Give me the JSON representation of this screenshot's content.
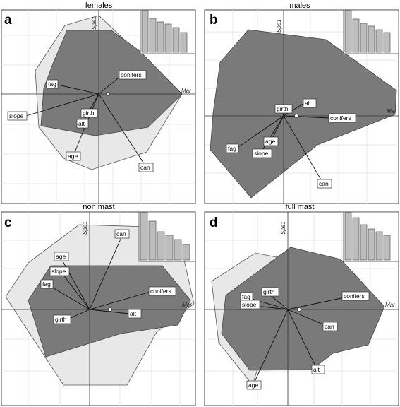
{
  "panels": [
    {
      "letter": "a",
      "title": "females",
      "axis_x": "Mar",
      "axis_y": "Spe1",
      "eigenvalues": [
        1.0,
        0.82,
        0.74,
        0.68,
        0.6,
        0.47
      ],
      "vectors": [
        {
          "label": "conifers"
        },
        {
          "label": "fag"
        },
        {
          "label": "slope"
        },
        {
          "label": "girth"
        },
        {
          "label": "alt"
        },
        {
          "label": "age"
        },
        {
          "label": "can"
        }
      ]
    },
    {
      "letter": "b",
      "title": "males",
      "axis_x": "Mar",
      "axis_y": "Spe1",
      "eigenvalues": [
        1.0,
        0.8,
        0.7,
        0.63,
        0.55,
        0.47
      ],
      "vectors": [
        {
          "label": "alt"
        },
        {
          "label": "girth"
        },
        {
          "label": "conifers"
        },
        {
          "label": "age"
        },
        {
          "label": "fag"
        },
        {
          "label": "slope"
        },
        {
          "label": "can"
        }
      ]
    },
    {
      "letter": "c",
      "title": "non mast",
      "axis_x": "Mar",
      "axis_y": "Spe1",
      "eigenvalues": [
        1.0,
        0.82,
        0.6,
        0.52,
        0.43,
        0.33
      ],
      "vectors": [
        {
          "label": "can"
        },
        {
          "label": "age"
        },
        {
          "label": "slope"
        },
        {
          "label": "fag"
        },
        {
          "label": "conifers"
        },
        {
          "label": "girth"
        },
        {
          "label": "alt"
        }
      ]
    },
    {
      "letter": "d",
      "title": "full mast",
      "axis_x": "Mar",
      "axis_y": "Spe1",
      "eigenvalues": [
        1.0,
        0.9,
        0.76,
        0.66,
        0.6,
        0.52
      ],
      "vectors": [
        {
          "label": "girth"
        },
        {
          "label": "fag"
        },
        {
          "label": "slope"
        },
        {
          "label": "conifers"
        },
        {
          "label": "can"
        },
        {
          "label": "alt"
        },
        {
          "label": "age"
        }
      ]
    }
  ]
}
